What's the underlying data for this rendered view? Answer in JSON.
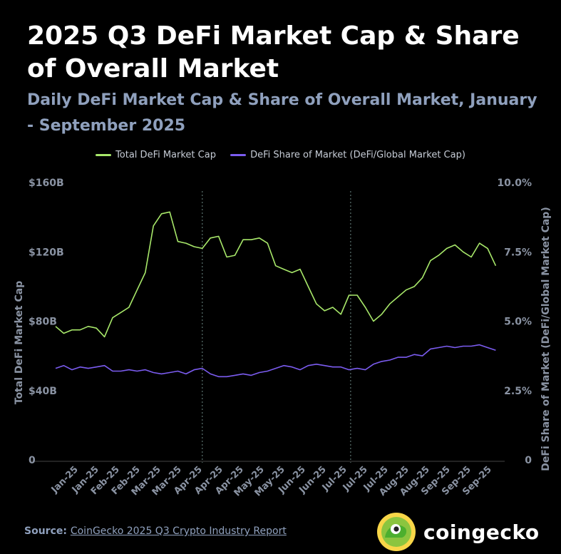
{
  "header": {
    "title": "2025 Q3 DeFi Market Cap & Share of Overall Market",
    "subtitle": "Daily DeFi Market Cap & Share of Overall Market, January - September 2025"
  },
  "footer": {
    "source_label": "Source:",
    "source_link": "CoinGecko 2025 Q3 Crypto Industry Report",
    "brand": "coingecko"
  },
  "colors": {
    "market_cap": "#a8e86a",
    "share": "#7b5cf0",
    "axis_text": "#8a93a3",
    "divider": "#6e8a86"
  },
  "chart_data": {
    "type": "line",
    "xlabel": "",
    "ylabel": "Total DeFi Market Cap",
    "ylabel_right": "DeFi Share of Market (DeFi/Global Market Cap)",
    "ylim": [
      0,
      160
    ],
    "ylim_right": [
      0,
      10
    ],
    "yticks": [
      "0",
      "$40B",
      "$80B",
      "$120B",
      "$160B"
    ],
    "yticks_right": [
      "0",
      "2.5%",
      "5.0%",
      "7.5%",
      "10.0%"
    ],
    "xticks": [
      "Jan-25",
      "Jan-25",
      "Feb-25",
      "Feb-25",
      "Mar-25",
      "Mar-25",
      "Apr-25",
      "Apr-25",
      "Apr-25",
      "May-25",
      "May-25",
      "Jun-25",
      "Jun-25",
      "Jul-25",
      "Jul-25",
      "Jul-25",
      "Aug-25",
      "Aug-25",
      "Sep-25",
      "Sep-25",
      "Sep-25"
    ],
    "quarter_dividers": [
      "2025-04-01",
      "2025-07-01"
    ],
    "legend_position": "top",
    "grid": false,
    "series": [
      {
        "name": "Total DeFi Market Cap",
        "axis": "left",
        "unit": "$B",
        "x": [
          "2025-01-01",
          "2025-01-06",
          "2025-01-11",
          "2025-01-16",
          "2025-01-21",
          "2025-01-26",
          "2025-01-31",
          "2025-02-05",
          "2025-02-10",
          "2025-02-15",
          "2025-02-20",
          "2025-02-25",
          "2025-03-02",
          "2025-03-07",
          "2025-03-12",
          "2025-03-17",
          "2025-03-22",
          "2025-03-27",
          "2025-04-01",
          "2025-04-06",
          "2025-04-11",
          "2025-04-16",
          "2025-04-21",
          "2025-04-26",
          "2025-05-01",
          "2025-05-06",
          "2025-05-11",
          "2025-05-16",
          "2025-05-21",
          "2025-05-26",
          "2025-05-31",
          "2025-06-05",
          "2025-06-10",
          "2025-06-15",
          "2025-06-20",
          "2025-06-25",
          "2025-06-30",
          "2025-07-05",
          "2025-07-10",
          "2025-07-15",
          "2025-07-20",
          "2025-07-25",
          "2025-07-30",
          "2025-08-04",
          "2025-08-09",
          "2025-08-14",
          "2025-08-19",
          "2025-08-24",
          "2025-08-29",
          "2025-09-03",
          "2025-09-08",
          "2025-09-13",
          "2025-09-18",
          "2025-09-23",
          "2025-09-28"
        ],
        "values": [
          77,
          73,
          75,
          75,
          77,
          76,
          71,
          82,
          85,
          88,
          98,
          108,
          135,
          142,
          143,
          126,
          125,
          123,
          122,
          128,
          129,
          117,
          118,
          127,
          127,
          128,
          125,
          112,
          110,
          108,
          110,
          100,
          90,
          86,
          88,
          84,
          95,
          95,
          88,
          80,
          84,
          90,
          94,
          98,
          100,
          105,
          115,
          118,
          122,
          124,
          120,
          117,
          125,
          122,
          112
        ]
      },
      {
        "name": "DeFi Share of Market (DeFi/Global Market Cap)",
        "axis": "right",
        "unit": "%",
        "x": [
          "2025-01-01",
          "2025-01-06",
          "2025-01-11",
          "2025-01-16",
          "2025-01-21",
          "2025-01-26",
          "2025-01-31",
          "2025-02-05",
          "2025-02-10",
          "2025-02-15",
          "2025-02-20",
          "2025-02-25",
          "2025-03-02",
          "2025-03-07",
          "2025-03-12",
          "2025-03-17",
          "2025-03-22",
          "2025-03-27",
          "2025-04-01",
          "2025-04-06",
          "2025-04-11",
          "2025-04-16",
          "2025-04-21",
          "2025-04-26",
          "2025-05-01",
          "2025-05-06",
          "2025-05-11",
          "2025-05-16",
          "2025-05-21",
          "2025-05-26",
          "2025-05-31",
          "2025-06-05",
          "2025-06-10",
          "2025-06-15",
          "2025-06-20",
          "2025-06-25",
          "2025-06-30",
          "2025-07-05",
          "2025-07-10",
          "2025-07-15",
          "2025-07-20",
          "2025-07-25",
          "2025-07-30",
          "2025-08-04",
          "2025-08-09",
          "2025-08-14",
          "2025-08-19",
          "2025-08-24",
          "2025-08-29",
          "2025-09-03",
          "2025-09-08",
          "2025-09-13",
          "2025-09-18",
          "2025-09-23",
          "2025-09-28"
        ],
        "values": [
          3.3,
          3.4,
          3.25,
          3.35,
          3.3,
          3.35,
          3.4,
          3.2,
          3.2,
          3.25,
          3.2,
          3.25,
          3.15,
          3.1,
          3.15,
          3.2,
          3.1,
          3.25,
          3.3,
          3.1,
          3.0,
          3.0,
          3.05,
          3.1,
          3.05,
          3.15,
          3.2,
          3.3,
          3.4,
          3.35,
          3.25,
          3.4,
          3.45,
          3.4,
          3.35,
          3.35,
          3.25,
          3.3,
          3.25,
          3.45,
          3.55,
          3.6,
          3.7,
          3.7,
          3.8,
          3.75,
          4.0,
          4.05,
          4.1,
          4.05,
          4.1,
          4.1,
          4.15,
          4.05,
          3.95
        ]
      }
    ]
  }
}
